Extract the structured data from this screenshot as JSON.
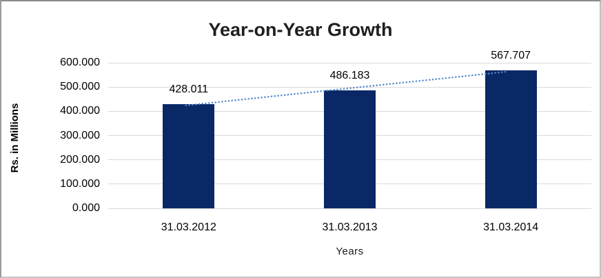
{
  "chart_data": {
    "type": "bar",
    "title": "Year-on-Year Growth",
    "categories": [
      "31.03.2012",
      "31.03.2013",
      "31.03.2014"
    ],
    "values": [
      428.011,
      486.183,
      567.707
    ],
    "data_labels": [
      "428.011",
      "486.183",
      "567.707"
    ],
    "xlabel": "Years",
    "ylabel": "Rs. in Millions",
    "ylim": [
      0,
      600
    ],
    "ytick_step": 100,
    "yticks": [
      0,
      100,
      200,
      300,
      400,
      500,
      600
    ],
    "ytick_labels": [
      "0.000",
      "100.000",
      "200.000",
      "300.000",
      "400.000",
      "500.000",
      "600.000"
    ],
    "grid": true,
    "legend_position": "none",
    "trendline": {
      "type": "linear",
      "style": "dotted"
    },
    "colors": {
      "bar": "#0a2866",
      "trendline": "#5289cc",
      "gridline": "#d9d9d9",
      "title_text": "#1f1f1f",
      "label_text": "#000000",
      "frame_border": "#c2c2c2"
    }
  }
}
